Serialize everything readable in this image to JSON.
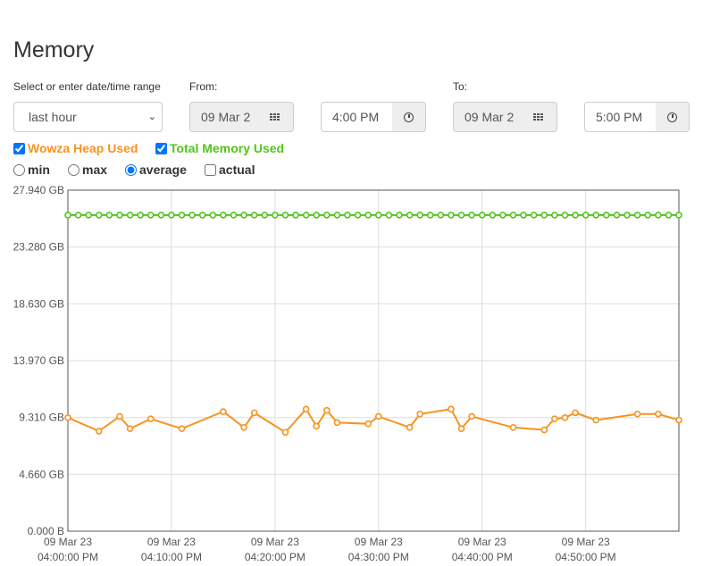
{
  "page": {
    "title": "Memory"
  },
  "range": {
    "label": "Select or enter date/time range",
    "selected": "last hour",
    "from_label": "From:",
    "from_date": "09 Mar 2",
    "from_time": "4:00 PM",
    "to_label": "To:",
    "to_date": "09 Mar 2",
    "to_time": "5:00 PM"
  },
  "series_toggles": [
    {
      "label": "Wowza Heap Used",
      "checked": true,
      "color": "#f7931e"
    },
    {
      "label": "Total Memory Used",
      "checked": true,
      "color": "#52c41a"
    }
  ],
  "aggregation": {
    "options": [
      "min",
      "max",
      "average"
    ],
    "selected": "average",
    "actual_label": "actual",
    "actual_checked": false
  },
  "icons": {
    "calendar": "calendar-grid-icon",
    "clock": "clock-icon"
  },
  "chart_data": {
    "type": "line",
    "ylim": [
      0,
      27.94
    ],
    "yticks": [
      0,
      4.66,
      9.31,
      13.97,
      18.63,
      23.28,
      27.94
    ],
    "ytick_labels": [
      "0.000 B",
      "4.660 GB",
      "9.310 GB",
      "13.970 GB",
      "18.630 GB",
      "23.280 GB",
      "27.940 GB"
    ],
    "xlim_minutes": [
      0,
      59
    ],
    "xticks_minutes": [
      0,
      10,
      20,
      30,
      40,
      50
    ],
    "xtick_labels": [
      [
        "09 Mar 23",
        "04:00:00 PM"
      ],
      [
        "09 Mar 23",
        "04:10:00 PM"
      ],
      [
        "09 Mar 23",
        "04:20:00 PM"
      ],
      [
        "09 Mar 23",
        "04:30:00 PM"
      ],
      [
        "09 Mar 23",
        "04:40:00 PM"
      ],
      [
        "09 Mar 23",
        "04:50:00 PM"
      ]
    ],
    "grid": true,
    "series": [
      {
        "name": "Total Memory Used",
        "color": "#52c41a",
        "x": [
          0,
          1,
          2,
          3,
          4,
          5,
          6,
          7,
          8,
          9,
          10,
          11,
          12,
          13,
          14,
          15,
          16,
          17,
          18,
          19,
          20,
          21,
          22,
          23,
          24,
          25,
          26,
          27,
          28,
          29,
          30,
          31,
          32,
          33,
          34,
          35,
          36,
          37,
          38,
          39,
          40,
          41,
          42,
          43,
          44,
          45,
          46,
          47,
          48,
          49,
          50,
          51,
          52,
          53,
          54,
          55,
          56,
          57,
          58,
          59
        ],
        "y": [
          25.9,
          25.9,
          25.9,
          25.9,
          25.9,
          25.9,
          25.9,
          25.9,
          25.9,
          25.9,
          25.9,
          25.9,
          25.9,
          25.9,
          25.9,
          25.9,
          25.9,
          25.9,
          25.9,
          25.9,
          25.9,
          25.9,
          25.9,
          25.9,
          25.9,
          25.9,
          25.9,
          25.9,
          25.9,
          25.9,
          25.9,
          25.9,
          25.9,
          25.9,
          25.9,
          25.9,
          25.9,
          25.9,
          25.9,
          25.9,
          25.9,
          25.9,
          25.9,
          25.9,
          25.9,
          25.9,
          25.9,
          25.9,
          25.9,
          25.9,
          25.9,
          25.9,
          25.9,
          25.9,
          25.9,
          25.9,
          25.9,
          25.9,
          25.9,
          25.9
        ]
      },
      {
        "name": "Wowza Heap Used",
        "color": "#f7931e",
        "x": [
          0,
          3,
          5,
          6,
          8,
          11,
          15,
          17,
          18,
          21,
          23,
          24,
          25,
          26,
          29,
          30,
          33,
          34,
          37,
          38,
          39,
          43,
          46,
          47,
          48,
          49,
          51,
          55,
          57,
          59
        ],
        "y": [
          9.3,
          8.2,
          9.4,
          8.4,
          9.2,
          8.4,
          9.8,
          8.5,
          9.7,
          8.1,
          10.0,
          8.6,
          9.9,
          8.9,
          8.8,
          9.4,
          8.5,
          9.6,
          10.0,
          8.4,
          9.4,
          8.5,
          8.3,
          9.2,
          9.3,
          9.7,
          9.1,
          9.6,
          9.6,
          9.1
        ]
      }
    ]
  }
}
